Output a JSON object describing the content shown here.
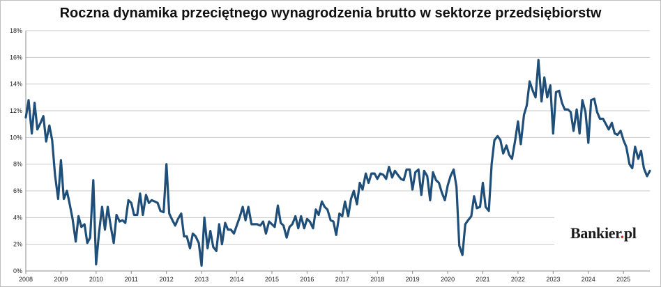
{
  "chart_data": {
    "type": "line",
    "title": "Roczna dynamika przeciętnego wynagrodzenia brutto w sektorze przedsiębiorstw",
    "xlabel": "",
    "ylabel": "",
    "x_tick_labels": [
      "2008",
      "2009",
      "2010",
      "2011",
      "2012",
      "2013",
      "2014",
      "2015",
      "2016",
      "2017",
      "2018",
      "2019",
      "2020",
      "2021",
      "2022",
      "2023",
      "2024",
      "2025"
    ],
    "y_tick_labels": [
      "0%",
      "2%",
      "4%",
      "6%",
      "8%",
      "10%",
      "12%",
      "14%",
      "16%",
      "18%"
    ],
    "ylim": [
      0,
      18
    ],
    "xlim": [
      2008.0,
      2025.75
    ],
    "grid": "horizontal",
    "legend": "none",
    "line_color": "#1f4e79",
    "series": [
      {
        "points": [
          [
            2008.0,
            11.5
          ],
          [
            2008.08,
            12.8
          ],
          [
            2008.17,
            10.3
          ],
          [
            2008.25,
            12.6
          ],
          [
            2008.33,
            10.6
          ],
          [
            2008.42,
            11.1
          ],
          [
            2008.5,
            11.6
          ],
          [
            2008.58,
            9.7
          ],
          [
            2008.67,
            10.9
          ],
          [
            2008.75,
            9.8
          ],
          [
            2008.83,
            7.2
          ],
          [
            2008.92,
            5.4
          ],
          [
            2009.0,
            8.3
          ],
          [
            2009.08,
            5.4
          ],
          [
            2009.17,
            6.0
          ],
          [
            2009.25,
            5.0
          ],
          [
            2009.33,
            3.9
          ],
          [
            2009.42,
            2.2
          ],
          [
            2009.5,
            4.1
          ],
          [
            2009.58,
            3.3
          ],
          [
            2009.67,
            3.5
          ],
          [
            2009.75,
            2.1
          ],
          [
            2009.83,
            2.5
          ],
          [
            2009.92,
            6.8
          ],
          [
            2010.0,
            0.5
          ],
          [
            2010.08,
            2.8
          ],
          [
            2010.17,
            4.8
          ],
          [
            2010.25,
            3.1
          ],
          [
            2010.33,
            4.8
          ],
          [
            2010.42,
            3.3
          ],
          [
            2010.5,
            2.1
          ],
          [
            2010.58,
            4.2
          ],
          [
            2010.67,
            3.7
          ],
          [
            2010.75,
            3.8
          ],
          [
            2010.83,
            3.6
          ],
          [
            2010.92,
            5.3
          ],
          [
            2011.0,
            5.1
          ],
          [
            2011.08,
            4.2
          ],
          [
            2011.17,
            4.2
          ],
          [
            2011.25,
            5.8
          ],
          [
            2011.33,
            4.2
          ],
          [
            2011.42,
            5.7
          ],
          [
            2011.5,
            5.1
          ],
          [
            2011.58,
            5.3
          ],
          [
            2011.67,
            5.2
          ],
          [
            2011.75,
            5.1
          ],
          [
            2011.83,
            4.5
          ],
          [
            2011.92,
            4.4
          ],
          [
            2012.0,
            8.0
          ],
          [
            2012.08,
            4.3
          ],
          [
            2012.17,
            3.8
          ],
          [
            2012.25,
            3.4
          ],
          [
            2012.33,
            3.9
          ],
          [
            2012.42,
            4.3
          ],
          [
            2012.5,
            2.6
          ],
          [
            2012.58,
            2.6
          ],
          [
            2012.67,
            1.7
          ],
          [
            2012.75,
            2.8
          ],
          [
            2012.83,
            2.6
          ],
          [
            2012.92,
            2.1
          ],
          [
            2013.0,
            0.4
          ],
          [
            2013.08,
            4.0
          ],
          [
            2013.17,
            1.7
          ],
          [
            2013.25,
            3.0
          ],
          [
            2013.33,
            1.8
          ],
          [
            2013.42,
            1.5
          ],
          [
            2013.5,
            3.5
          ],
          [
            2013.58,
            2.0
          ],
          [
            2013.67,
            3.6
          ],
          [
            2013.75,
            3.1
          ],
          [
            2013.83,
            3.1
          ],
          [
            2013.92,
            2.8
          ],
          [
            2014.0,
            3.4
          ],
          [
            2014.08,
            4.0
          ],
          [
            2014.17,
            4.8
          ],
          [
            2014.25,
            3.8
          ],
          [
            2014.33,
            4.8
          ],
          [
            2014.42,
            3.5
          ],
          [
            2014.5,
            3.5
          ],
          [
            2014.58,
            3.5
          ],
          [
            2014.67,
            3.4
          ],
          [
            2014.75,
            3.7
          ],
          [
            2014.83,
            2.8
          ],
          [
            2014.92,
            3.7
          ],
          [
            2015.0,
            3.5
          ],
          [
            2015.08,
            3.3
          ],
          [
            2015.17,
            4.9
          ],
          [
            2015.25,
            3.6
          ],
          [
            2015.33,
            3.4
          ],
          [
            2015.42,
            2.5
          ],
          [
            2015.5,
            3.3
          ],
          [
            2015.58,
            3.5
          ],
          [
            2015.67,
            4.1
          ],
          [
            2015.75,
            3.2
          ],
          [
            2015.83,
            4.1
          ],
          [
            2015.92,
            3.2
          ],
          [
            2016.0,
            3.9
          ],
          [
            2016.08,
            3.7
          ],
          [
            2016.17,
            3.2
          ],
          [
            2016.25,
            4.6
          ],
          [
            2016.33,
            4.2
          ],
          [
            2016.42,
            5.2
          ],
          [
            2016.5,
            4.8
          ],
          [
            2016.58,
            4.6
          ],
          [
            2016.67,
            3.8
          ],
          [
            2016.75,
            3.7
          ],
          [
            2016.83,
            2.7
          ],
          [
            2016.92,
            4.3
          ],
          [
            2017.0,
            4.1
          ],
          [
            2017.08,
            5.2
          ],
          [
            2017.17,
            4.1
          ],
          [
            2017.25,
            5.4
          ],
          [
            2017.33,
            6.0
          ],
          [
            2017.42,
            5.0
          ],
          [
            2017.5,
            6.6
          ],
          [
            2017.58,
            6.1
          ],
          [
            2017.67,
            7.3
          ],
          [
            2017.75,
            6.6
          ],
          [
            2017.83,
            7.3
          ],
          [
            2017.92,
            7.3
          ],
          [
            2018.0,
            6.9
          ],
          [
            2018.08,
            7.3
          ],
          [
            2018.17,
            7.2
          ],
          [
            2018.25,
            6.9
          ],
          [
            2018.33,
            7.8
          ],
          [
            2018.42,
            7.0
          ],
          [
            2018.5,
            7.5
          ],
          [
            2018.58,
            7.2
          ],
          [
            2018.67,
            6.9
          ],
          [
            2018.75,
            6.8
          ],
          [
            2018.83,
            7.6
          ],
          [
            2018.92,
            7.6
          ],
          [
            2019.0,
            6.1
          ],
          [
            2019.08,
            7.4
          ],
          [
            2019.17,
            7.6
          ],
          [
            2019.25,
            5.7
          ],
          [
            2019.33,
            7.5
          ],
          [
            2019.42,
            7.1
          ],
          [
            2019.5,
            5.3
          ],
          [
            2019.58,
            7.4
          ],
          [
            2019.67,
            6.8
          ],
          [
            2019.75,
            6.6
          ],
          [
            2019.83,
            5.9
          ],
          [
            2019.92,
            5.3
          ],
          [
            2020.0,
            6.4
          ],
          [
            2020.08,
            7.1
          ],
          [
            2020.17,
            7.6
          ],
          [
            2020.25,
            6.3
          ],
          [
            2020.33,
            1.9
          ],
          [
            2020.42,
            1.2
          ],
          [
            2020.5,
            3.5
          ],
          [
            2020.58,
            3.8
          ],
          [
            2020.67,
            4.1
          ],
          [
            2020.75,
            5.6
          ],
          [
            2020.83,
            4.7
          ],
          [
            2020.92,
            4.8
          ],
          [
            2021.0,
            6.6
          ],
          [
            2021.08,
            4.8
          ],
          [
            2021.17,
            4.5
          ],
          [
            2021.25,
            8.0
          ],
          [
            2021.33,
            9.8
          ],
          [
            2021.42,
            10.1
          ],
          [
            2021.5,
            9.8
          ],
          [
            2021.58,
            8.8
          ],
          [
            2021.67,
            9.4
          ],
          [
            2021.75,
            8.7
          ],
          [
            2021.83,
            8.4
          ],
          [
            2021.92,
            9.8
          ],
          [
            2022.0,
            11.2
          ],
          [
            2022.08,
            9.5
          ],
          [
            2022.17,
            11.7
          ],
          [
            2022.25,
            12.4
          ],
          [
            2022.33,
            14.2
          ],
          [
            2022.42,
            13.5
          ],
          [
            2022.5,
            13.0
          ],
          [
            2022.58,
            15.8
          ],
          [
            2022.67,
            12.7
          ],
          [
            2022.75,
            14.5
          ],
          [
            2022.83,
            13.0
          ],
          [
            2022.92,
            13.9
          ],
          [
            2023.0,
            10.3
          ],
          [
            2023.08,
            13.4
          ],
          [
            2023.17,
            13.5
          ],
          [
            2023.25,
            12.6
          ],
          [
            2023.33,
            12.1
          ],
          [
            2023.42,
            12.1
          ],
          [
            2023.5,
            11.9
          ],
          [
            2023.58,
            10.5
          ],
          [
            2023.67,
            12.1
          ],
          [
            2023.75,
            10.3
          ],
          [
            2023.83,
            12.8
          ],
          [
            2023.92,
            11.9
          ],
          [
            2024.0,
            9.6
          ],
          [
            2024.08,
            12.8
          ],
          [
            2024.17,
            12.9
          ],
          [
            2024.25,
            11.9
          ],
          [
            2024.33,
            11.4
          ],
          [
            2024.42,
            11.4
          ],
          [
            2024.5,
            11.0
          ],
          [
            2024.58,
            10.6
          ],
          [
            2024.67,
            11.1
          ],
          [
            2024.75,
            10.3
          ],
          [
            2024.83,
            10.2
          ],
          [
            2024.92,
            10.5
          ],
          [
            2025.0,
            9.8
          ],
          [
            2025.08,
            9.3
          ],
          [
            2025.17,
            8.0
          ],
          [
            2025.25,
            7.7
          ],
          [
            2025.33,
            9.3
          ],
          [
            2025.42,
            8.4
          ],
          [
            2025.5,
            9.0
          ],
          [
            2025.58,
            7.7
          ],
          [
            2025.67,
            7.1
          ],
          [
            2025.75,
            7.5
          ]
        ]
      }
    ]
  },
  "logo": {
    "text_main": "Bankier",
    "text_dot": ".",
    "text_tld": "pl"
  }
}
